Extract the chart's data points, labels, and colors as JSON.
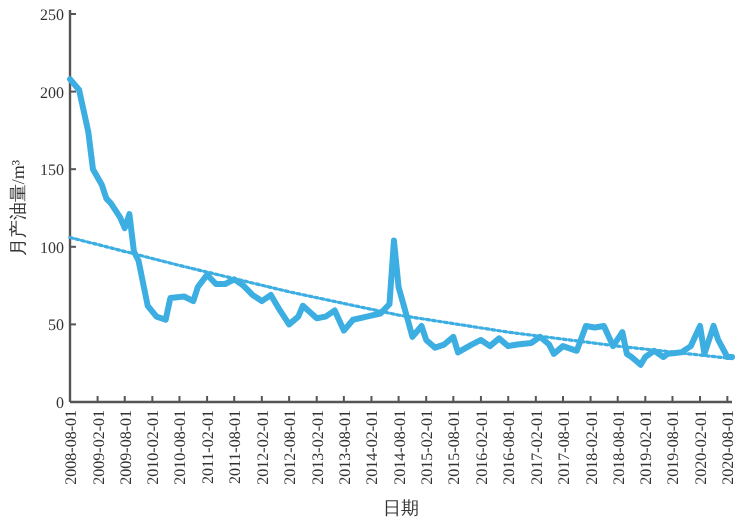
{
  "chart_data": {
    "type": "line",
    "xlabel": "日期",
    "ylabel": "月产油量/m³",
    "x": [
      "2008-08",
      "2008-10",
      "2008-12",
      "2009-01",
      "2009-03",
      "2009-04",
      "2009-05",
      "2009-07",
      "2009-08",
      "2009-09",
      "2009-10",
      "2009-11",
      "2010-01",
      "2010-03",
      "2010-05",
      "2010-06",
      "2010-09",
      "2010-11",
      "2010-12",
      "2011-02",
      "2011-04",
      "2011-06",
      "2011-08",
      "2011-10",
      "2011-12",
      "2012-02",
      "2012-04",
      "2012-06",
      "2012-08",
      "2012-10",
      "2012-11",
      "2013-02",
      "2013-04",
      "2013-06",
      "2013-08",
      "2013-10",
      "2014-01",
      "2014-04",
      "2014-06",
      "2014-07",
      "2014-08",
      "2014-10",
      "2014-11",
      "2015-01",
      "2015-02",
      "2015-04",
      "2015-06",
      "2015-08",
      "2015-09",
      "2015-12",
      "2016-02",
      "2016-04",
      "2016-06",
      "2016-08",
      "2016-10",
      "2017-01",
      "2017-03",
      "2017-05",
      "2017-06",
      "2017-08",
      "2017-11",
      "2018-01",
      "2018-03",
      "2018-05",
      "2018-07",
      "2018-09",
      "2018-10",
      "2018-11",
      "2019-01",
      "2019-02",
      "2019-04",
      "2019-06",
      "2019-07",
      "2019-10",
      "2019-12",
      "2020-02",
      "2020-03",
      "2020-05",
      "2020-06",
      "2020-08",
      "2020-09"
    ],
    "series": [
      {
        "color": "#3daee2",
        "line_style": "solid",
        "values": [
          208,
          201,
          174,
          150,
          140,
          131,
          128,
          119,
          112,
          121,
          97,
          91,
          62,
          55,
          53,
          67,
          68,
          65,
          74,
          82,
          76,
          76,
          79,
          75,
          69,
          65,
          69,
          59,
          50,
          55,
          62,
          54,
          55,
          59,
          46,
          53,
          55,
          57,
          63,
          104,
          74,
          53,
          42,
          49,
          40,
          35,
          37,
          42,
          32,
          37,
          40,
          36,
          41,
          36,
          37,
          38,
          42,
          37,
          31,
          36,
          33,
          49,
          48,
          49,
          36,
          45,
          31,
          29,
          24,
          29,
          33,
          29,
          31,
          32,
          36,
          49,
          31,
          49,
          40,
          29,
          29
        ]
      },
      {
        "type": "line",
        "color": "#3daee2",
        "line_style": "dotted",
        "x": [
          "2008-08",
          "2010-08",
          "2012-08",
          "2014-08",
          "2016-08",
          "2018-08",
          "2020-09"
        ],
        "values": [
          106,
          88,
          71,
          56,
          45,
          36,
          28
        ]
      }
    ],
    "xlim": [
      "2008-08",
      "2020-09"
    ],
    "ylim": [
      0,
      250
    ],
    "yticks": [
      0,
      50,
      100,
      150,
      200,
      250
    ],
    "xticks": [
      "2008-08-01",
      "2009-02-01",
      "2009-08-01",
      "2010-02-01",
      "2010-08-01",
      "2011-02-01",
      "2011-08-01",
      "2012-02-01",
      "2012-08-01",
      "2013-02-01",
      "2013-08-01",
      "2014-02-01",
      "2014-08-01",
      "2015-02-01",
      "2015-08-01",
      "2016-02-01",
      "2016-08-01",
      "2017-02-01",
      "2017-08-01",
      "2018-02-01",
      "2018-08-01",
      "2019-02-01",
      "2019-08-01",
      "2020-02-01",
      "2020-08-01"
    ],
    "grid": false,
    "marker": "none"
  }
}
